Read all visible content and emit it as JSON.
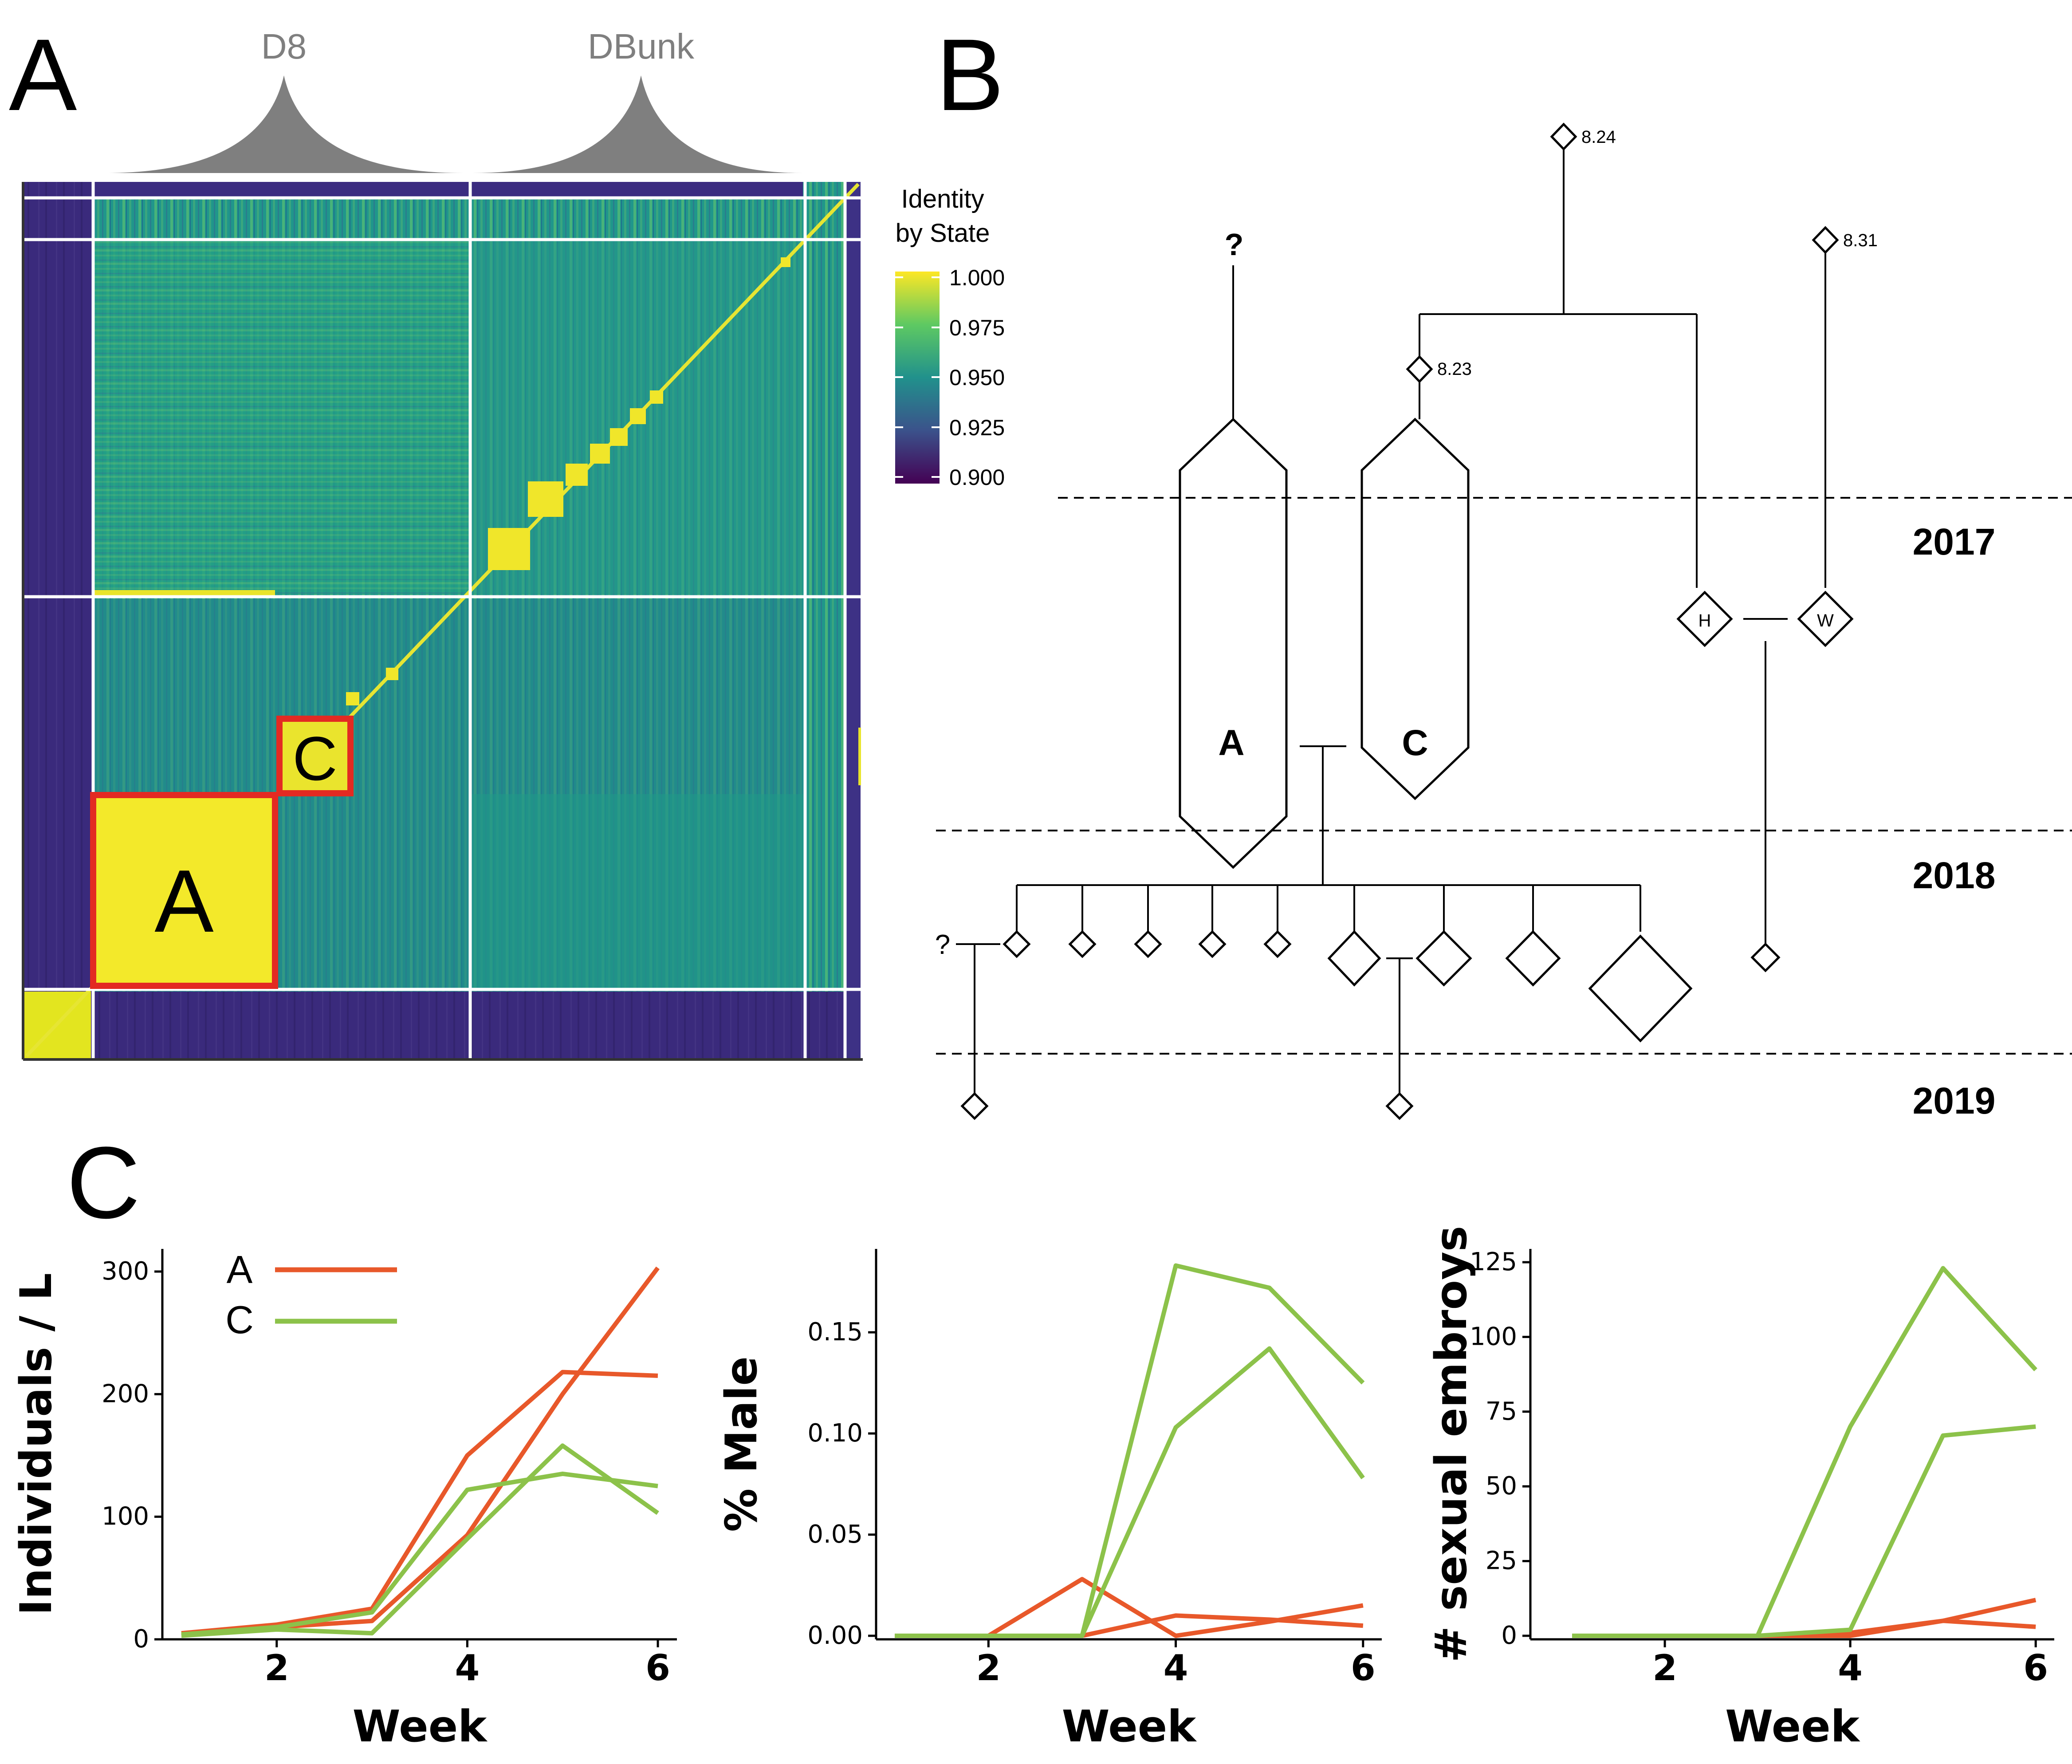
{
  "panel_labels": {
    "a": "A",
    "b": "B",
    "c": "C"
  },
  "panel_a": {
    "top_labels": [
      "D8",
      "DBunk"
    ],
    "box_labels": {
      "a": "A",
      "c": "C"
    },
    "highlight_color": "#e32a22",
    "legend": {
      "title_line1": "Identity",
      "title_line2": "by State",
      "ticks": [
        "1.000",
        "0.975",
        "0.950",
        "0.925",
        "0.900"
      ],
      "colors": [
        "#fde725",
        "#5ec962",
        "#21918c",
        "#3b528b",
        "#440154"
      ]
    }
  },
  "panel_b": {
    "years": [
      "2017",
      "2018",
      "2019"
    ],
    "unknown_top": "?",
    "unknown_left": "?",
    "clone_a": "A",
    "clone_c": "C",
    "nodes": {
      "n824": "8.24",
      "n831": "8.31",
      "n823": "8.23",
      "h": "H",
      "w": "W"
    }
  },
  "chart_data": [
    {
      "type": "line",
      "x": [
        1,
        2,
        3,
        4,
        5,
        6
      ],
      "xlabel": "Week",
      "ylabel": "Individuals / L",
      "xticks": [
        "2",
        "4",
        "6"
      ],
      "yticks": [
        "0",
        "100",
        "200",
        "300"
      ],
      "ylim": [
        0,
        300
      ],
      "legend": [
        {
          "label": "A",
          "color": "#e8582a"
        },
        {
          "label": "C",
          "color": "#8cc24a"
        }
      ],
      "series": [
        {
          "group": "A",
          "color": "#e8582a",
          "points": [
            [
              1,
              5
            ],
            [
              2,
              12
            ],
            [
              3,
              25
            ],
            [
              4,
              150
            ],
            [
              5,
              218
            ],
            [
              6,
              215
            ]
          ]
        },
        {
          "group": "A",
          "color": "#e8582a",
          "points": [
            [
              1,
              3
            ],
            [
              2,
              10
            ],
            [
              3,
              15
            ],
            [
              4,
              85
            ],
            [
              5,
              200
            ],
            [
              6,
              303
            ]
          ]
        },
        {
          "group": "C",
          "color": "#8cc24a",
          "points": [
            [
              1,
              4
            ],
            [
              2,
              10
            ],
            [
              3,
              22
            ],
            [
              4,
              122
            ],
            [
              5,
              135
            ],
            [
              6,
              125
            ]
          ]
        },
        {
          "group": "C",
          "color": "#8cc24a",
          "points": [
            [
              1,
              3
            ],
            [
              2,
              8
            ],
            [
              3,
              5
            ],
            [
              4,
              82
            ],
            [
              5,
              158
            ],
            [
              6,
              103
            ]
          ]
        }
      ]
    },
    {
      "type": "line",
      "x": [
        1,
        2,
        3,
        4,
        5,
        6
      ],
      "xlabel": "Week",
      "ylabel": "% Male",
      "xticks": [
        "2",
        "4",
        "6"
      ],
      "yticks": [
        "0.00",
        "0.05",
        "0.10",
        "0.15"
      ],
      "ylim": [
        0,
        0.18
      ],
      "series": [
        {
          "group": "A",
          "color": "#e8582a",
          "points": [
            [
              1,
              0
            ],
            [
              2,
              0
            ],
            [
              3,
              0.028
            ],
            [
              4,
              0
            ],
            [
              5,
              0.007
            ],
            [
              6,
              0.015
            ]
          ]
        },
        {
          "group": "A",
          "color": "#e8582a",
          "points": [
            [
              1,
              0
            ],
            [
              2,
              0
            ],
            [
              3,
              0
            ],
            [
              4,
              0.01
            ],
            [
              5,
              0.008
            ],
            [
              6,
              0.005
            ]
          ]
        },
        {
          "group": "C",
          "color": "#8cc24a",
          "points": [
            [
              1,
              0
            ],
            [
              2,
              0
            ],
            [
              3,
              0
            ],
            [
              4,
              0.183
            ],
            [
              5,
              0.172
            ],
            [
              6,
              0.125
            ]
          ]
        },
        {
          "group": "C",
          "color": "#8cc24a",
          "points": [
            [
              1,
              0
            ],
            [
              2,
              0
            ],
            [
              3,
              0
            ],
            [
              4,
              0.103
            ],
            [
              5,
              0.142
            ],
            [
              6,
              0.078
            ]
          ]
        }
      ]
    },
    {
      "type": "line",
      "x": [
        1,
        2,
        3,
        4,
        5,
        6
      ],
      "xlabel": "Week",
      "ylabel": "# sexual embroys",
      "xticks": [
        "2",
        "4",
        "6"
      ],
      "yticks": [
        "0",
        "25",
        "50",
        "75",
        "100",
        "125"
      ],
      "ylim": [
        0,
        125
      ],
      "series": [
        {
          "group": "A",
          "color": "#e8582a",
          "points": [
            [
              1,
              0
            ],
            [
              2,
              0
            ],
            [
              3,
              0
            ],
            [
              4,
              1
            ],
            [
              5,
              5
            ],
            [
              6,
              12
            ]
          ]
        },
        {
          "group": "A",
          "color": "#e8582a",
          "points": [
            [
              1,
              0
            ],
            [
              2,
              0
            ],
            [
              3,
              0
            ],
            [
              4,
              0
            ],
            [
              5,
              5
            ],
            [
              6,
              3
            ]
          ]
        },
        {
          "group": "C",
          "color": "#8cc24a",
          "points": [
            [
              1,
              0
            ],
            [
              2,
              0
            ],
            [
              3,
              0
            ],
            [
              4,
              70
            ],
            [
              5,
              123
            ],
            [
              6,
              89
            ]
          ]
        },
        {
          "group": "C",
          "color": "#8cc24a",
          "points": [
            [
              1,
              0
            ],
            [
              2,
              0
            ],
            [
              3,
              0
            ],
            [
              4,
              2
            ],
            [
              5,
              67
            ],
            [
              6,
              70
            ]
          ]
        }
      ]
    }
  ]
}
